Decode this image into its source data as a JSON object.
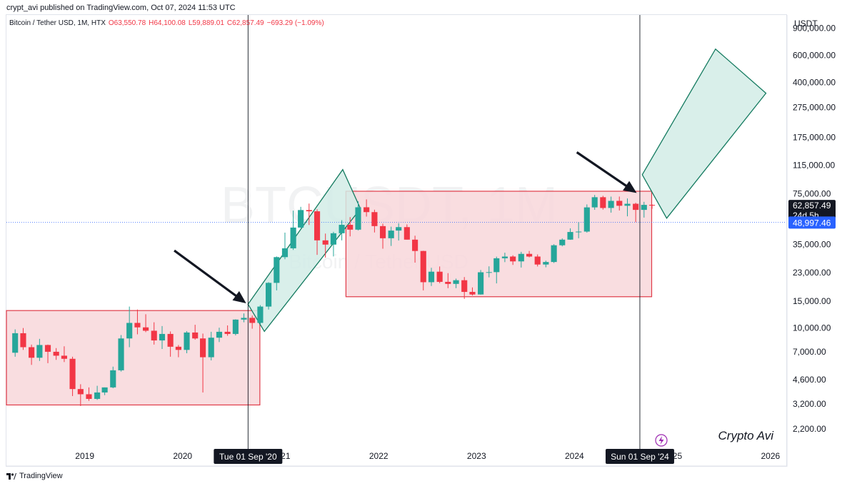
{
  "header": {
    "published": "crypt_avi published on TradingView.com, Oct 07, 2024 11:53 UTC"
  },
  "legend": {
    "symbol": "Bitcoin / Tether USD, 1M, HTX",
    "open": "O63,550.78",
    "high": "H64,100.08",
    "low": "L59,889.01",
    "close": "C62,857.49",
    "change": "−693.29 (−1.09%)"
  },
  "watermark": {
    "ticker": "BTCUSDT, 1M",
    "name": "Bitcoin / Tether USD"
  },
  "price_axis": {
    "unit": "USDT",
    "current_price": "62,857.49",
    "countdown": "24d 5h",
    "crosshair_price": "48,997.46"
  },
  "time_axis": {
    "highlight_left": "Tue 01 Sep '20",
    "highlight_right": "Sun 01 Sep '24"
  },
  "signature": "Crypto Avi",
  "footer": {
    "brand": "TradingView"
  },
  "colors": {
    "up": "#26a69a",
    "down": "#f23645",
    "range_box_fill": "#f8d7da",
    "range_box_stroke": "#e03a48",
    "channel_fill": "#d2ece6",
    "channel_stroke": "#137a5f",
    "current_price_bg": "#131722",
    "crosshair_bg": "#2962ff"
  },
  "chart_data": {
    "type": "candlestick",
    "title": "Bitcoin / Tether USD, 1M, HTX",
    "interval": "1M",
    "exchange": "HTX",
    "y_scale": "log",
    "ylim": [
      1700,
      1100000
    ],
    "y_ticks": [
      {
        "value": 900000,
        "label": "900,000.00"
      },
      {
        "value": 600000,
        "label": "600,000.00"
      },
      {
        "value": 400000,
        "label": "400,000.00"
      },
      {
        "value": 275000,
        "label": "275,000.00"
      },
      {
        "value": 175000,
        "label": "175,000.00"
      },
      {
        "value": 115000,
        "label": "115,000.00"
      },
      {
        "value": 75000,
        "label": "75,000.00"
      },
      {
        "value": 35000,
        "label": "35,000.00"
      },
      {
        "value": 23000,
        "label": "23,000.00"
      },
      {
        "value": 15000,
        "label": "15,000.00"
      },
      {
        "value": 10000,
        "label": "10,000.00"
      },
      {
        "value": 7000,
        "label": "7,000.00"
      },
      {
        "value": 4600,
        "label": "4,600.00"
      },
      {
        "value": 3200,
        "label": "3,200.00"
      },
      {
        "value": 2200,
        "label": "2,200.00"
      }
    ],
    "x_range": [
      "2018-03-15",
      "2026-03-01"
    ],
    "x_ticks": [
      {
        "date": "2019-01-01",
        "label": "2019"
      },
      {
        "date": "2020-01-01",
        "label": "2020"
      },
      {
        "date": "2021-01-01",
        "label": "2021"
      },
      {
        "date": "2022-01-01",
        "label": "2022"
      },
      {
        "date": "2023-01-01",
        "label": "2023"
      },
      {
        "date": "2024-01-01",
        "label": "2024"
      },
      {
        "date": "2025-01-01",
        "label": "2025"
      },
      {
        "date": "2026-01-01",
        "label": "2026"
      }
    ],
    "candles": [
      {
        "date": "2018-04-01",
        "o": 6900,
        "h": 9800,
        "l": 6500,
        "c": 9250
      },
      {
        "date": "2018-05-01",
        "o": 9250,
        "h": 10000,
        "l": 7200,
        "c": 7500
      },
      {
        "date": "2018-06-01",
        "o": 7500,
        "h": 7800,
        "l": 5750,
        "c": 6400
      },
      {
        "date": "2018-07-01",
        "o": 6400,
        "h": 8500,
        "l": 6100,
        "c": 7750
      },
      {
        "date": "2018-08-01",
        "o": 7750,
        "h": 7800,
        "l": 5900,
        "c": 7000
      },
      {
        "date": "2018-09-01",
        "o": 7000,
        "h": 7400,
        "l": 6200,
        "c": 6600
      },
      {
        "date": "2018-10-01",
        "o": 6600,
        "h": 7600,
        "l": 6000,
        "c": 6300
      },
      {
        "date": "2018-11-01",
        "o": 6300,
        "h": 6500,
        "l": 3600,
        "c": 4000
      },
      {
        "date": "2018-12-01",
        "o": 4000,
        "h": 4300,
        "l": 3100,
        "c": 3700
      },
      {
        "date": "2019-01-01",
        "o": 3700,
        "h": 4100,
        "l": 3350,
        "c": 3450
      },
      {
        "date": "2019-02-01",
        "o": 3450,
        "h": 4200,
        "l": 3400,
        "c": 3800
      },
      {
        "date": "2019-03-01",
        "o": 3800,
        "h": 4100,
        "l": 3650,
        "c": 4100
      },
      {
        "date": "2019-04-01",
        "o": 4100,
        "h": 5600,
        "l": 4050,
        "c": 5300
      },
      {
        "date": "2019-05-01",
        "o": 5300,
        "h": 9000,
        "l": 5200,
        "c": 8550
      },
      {
        "date": "2019-06-01",
        "o": 8550,
        "h": 13800,
        "l": 7500,
        "c": 10800
      },
      {
        "date": "2019-07-01",
        "o": 10800,
        "h": 13200,
        "l": 9100,
        "c": 10100
      },
      {
        "date": "2019-08-01",
        "o": 10100,
        "h": 12300,
        "l": 9400,
        "c": 9600
      },
      {
        "date": "2019-09-01",
        "o": 9600,
        "h": 10900,
        "l": 7800,
        "c": 8300
      },
      {
        "date": "2019-10-01",
        "o": 8300,
        "h": 10300,
        "l": 7300,
        "c": 9150
      },
      {
        "date": "2019-11-01",
        "o": 9150,
        "h": 9500,
        "l": 6500,
        "c": 7550
      },
      {
        "date": "2019-12-01",
        "o": 7550,
        "h": 7750,
        "l": 6450,
        "c": 7200
      },
      {
        "date": "2020-01-01",
        "o": 7200,
        "h": 9550,
        "l": 6850,
        "c": 9350
      },
      {
        "date": "2020-02-01",
        "o": 9350,
        "h": 10500,
        "l": 8400,
        "c": 8550
      },
      {
        "date": "2020-03-01",
        "o": 8550,
        "h": 9200,
        "l": 3800,
        "c": 6450
      },
      {
        "date": "2020-04-01",
        "o": 6450,
        "h": 9450,
        "l": 6150,
        "c": 8650
      },
      {
        "date": "2020-05-01",
        "o": 8650,
        "h": 10050,
        "l": 8100,
        "c": 9450
      },
      {
        "date": "2020-06-01",
        "o": 9450,
        "h": 10400,
        "l": 8900,
        "c": 9150
      },
      {
        "date": "2020-07-01",
        "o": 9150,
        "h": 11400,
        "l": 8950,
        "c": 11350
      },
      {
        "date": "2020-08-01",
        "o": 11350,
        "h": 12450,
        "l": 10900,
        "c": 11650
      },
      {
        "date": "2020-09-01",
        "o": 11650,
        "h": 12050,
        "l": 9900,
        "c": 10800
      },
      {
        "date": "2020-10-01",
        "o": 10800,
        "h": 14100,
        "l": 10550,
        "c": 13800
      },
      {
        "date": "2020-11-01",
        "o": 13800,
        "h": 19900,
        "l": 13200,
        "c": 19700
      },
      {
        "date": "2020-12-01",
        "o": 19700,
        "h": 29300,
        "l": 17600,
        "c": 29000
      },
      {
        "date": "2021-01-01",
        "o": 29000,
        "h": 41900,
        "l": 28100,
        "c": 33100
      },
      {
        "date": "2021-02-01",
        "o": 33100,
        "h": 58300,
        "l": 32300,
        "c": 45200
      },
      {
        "date": "2021-03-01",
        "o": 45200,
        "h": 61700,
        "l": 45000,
        "c": 58800
      },
      {
        "date": "2021-04-01",
        "o": 58800,
        "h": 64800,
        "l": 47000,
        "c": 57700
      },
      {
        "date": "2021-05-01",
        "o": 57700,
        "h": 59500,
        "l": 30000,
        "c": 37300
      },
      {
        "date": "2021-06-01",
        "o": 37300,
        "h": 41300,
        "l": 28800,
        "c": 35000
      },
      {
        "date": "2021-07-01",
        "o": 35000,
        "h": 42400,
        "l": 29300,
        "c": 41500
      },
      {
        "date": "2021-08-01",
        "o": 41500,
        "h": 50500,
        "l": 37300,
        "c": 47100
      },
      {
        "date": "2021-09-01",
        "o": 47100,
        "h": 52900,
        "l": 39600,
        "c": 43800
      },
      {
        "date": "2021-10-01",
        "o": 43800,
        "h": 67000,
        "l": 43300,
        "c": 61300
      },
      {
        "date": "2021-11-01",
        "o": 61300,
        "h": 69000,
        "l": 53300,
        "c": 57000
      },
      {
        "date": "2021-12-01",
        "o": 57000,
        "h": 59100,
        "l": 42000,
        "c": 46200
      },
      {
        "date": "2022-01-01",
        "o": 46200,
        "h": 47900,
        "l": 32900,
        "c": 38500
      },
      {
        "date": "2022-02-01",
        "o": 38500,
        "h": 45800,
        "l": 34300,
        "c": 43200
      },
      {
        "date": "2022-03-01",
        "o": 43200,
        "h": 48200,
        "l": 37200,
        "c": 45500
      },
      {
        "date": "2022-04-01",
        "o": 45500,
        "h": 47400,
        "l": 37700,
        "c": 37700
      },
      {
        "date": "2022-05-01",
        "o": 37700,
        "h": 40000,
        "l": 26700,
        "c": 31800
      },
      {
        "date": "2022-06-01",
        "o": 31800,
        "h": 31900,
        "l": 17600,
        "c": 19900
      },
      {
        "date": "2022-07-01",
        "o": 19900,
        "h": 24700,
        "l": 18800,
        "c": 23300
      },
      {
        "date": "2022-08-01",
        "o": 23300,
        "h": 25200,
        "l": 19600,
        "c": 20000
      },
      {
        "date": "2022-09-01",
        "o": 20000,
        "h": 22800,
        "l": 18200,
        "c": 19400
      },
      {
        "date": "2022-10-01",
        "o": 19400,
        "h": 21000,
        "l": 18200,
        "c": 20500
      },
      {
        "date": "2022-11-01",
        "o": 20500,
        "h": 21500,
        "l": 15500,
        "c": 17200
      },
      {
        "date": "2022-12-01",
        "o": 17200,
        "h": 18400,
        "l": 16300,
        "c": 16550
      },
      {
        "date": "2023-01-01",
        "o": 16550,
        "h": 23900,
        "l": 16500,
        "c": 23100
      },
      {
        "date": "2023-02-01",
        "o": 23100,
        "h": 25250,
        "l": 21400,
        "c": 23150
      },
      {
        "date": "2023-03-01",
        "o": 23150,
        "h": 29200,
        "l": 19550,
        "c": 28500
      },
      {
        "date": "2023-04-01",
        "o": 28500,
        "h": 31000,
        "l": 26900,
        "c": 29250
      },
      {
        "date": "2023-05-01",
        "o": 29250,
        "h": 29800,
        "l": 25800,
        "c": 27200
      },
      {
        "date": "2023-06-01",
        "o": 27200,
        "h": 31400,
        "l": 24800,
        "c": 30450
      },
      {
        "date": "2023-07-01",
        "o": 30450,
        "h": 31800,
        "l": 28900,
        "c": 29250
      },
      {
        "date": "2023-08-01",
        "o": 29250,
        "h": 30200,
        "l": 25200,
        "c": 25950
      },
      {
        "date": "2023-09-01",
        "o": 25950,
        "h": 27500,
        "l": 24900,
        "c": 26950
      },
      {
        "date": "2023-10-01",
        "o": 26950,
        "h": 35200,
        "l": 26550,
        "c": 34650
      },
      {
        "date": "2023-11-01",
        "o": 34650,
        "h": 38400,
        "l": 34100,
        "c": 37700
      },
      {
        "date": "2023-12-01",
        "o": 37700,
        "h": 44700,
        "l": 37600,
        "c": 42300
      },
      {
        "date": "2024-01-01",
        "o": 42300,
        "h": 48900,
        "l": 38500,
        "c": 42550
      },
      {
        "date": "2024-02-01",
        "o": 42550,
        "h": 64000,
        "l": 41900,
        "c": 61200
      },
      {
        "date": "2024-03-01",
        "o": 61200,
        "h": 73800,
        "l": 59000,
        "c": 71300
      },
      {
        "date": "2024-04-01",
        "o": 71300,
        "h": 72800,
        "l": 59200,
        "c": 60650
      },
      {
        "date": "2024-05-01",
        "o": 60650,
        "h": 71950,
        "l": 56550,
        "c": 67500
      },
      {
        "date": "2024-06-01",
        "o": 67500,
        "h": 72000,
        "l": 58400,
        "c": 62700
      },
      {
        "date": "2024-07-01",
        "o": 62700,
        "h": 70000,
        "l": 53500,
        "c": 64600
      },
      {
        "date": "2024-08-01",
        "o": 64600,
        "h": 65600,
        "l": 49000,
        "c": 58950
      },
      {
        "date": "2024-09-01",
        "o": 58950,
        "h": 66500,
        "l": 52500,
        "c": 63550
      },
      {
        "date": "2024-10-01",
        "o": 63550,
        "h": 64100,
        "l": 59889.01,
        "c": 62857.49
      }
    ],
    "annotations": {
      "range_boxes": [
        {
          "start": "2018-03-15",
          "end": "2020-10-15",
          "top": 13000,
          "bottom": 3150
        },
        {
          "start": "2021-09-01",
          "end": "2024-10-15",
          "top": 78000,
          "bottom": 16000
        }
      ],
      "channels": [
        {
          "p1": {
            "date": "2020-09-01",
            "v": 14300
          },
          "p2": {
            "date": "2021-08-20",
            "v": 108000
          },
          "p3": {
            "date": "2021-10-25",
            "v": 60000
          },
          "p4": {
            "date": "2020-11-01",
            "v": 9500
          }
        },
        {
          "p1": {
            "date": "2024-09-10",
            "v": 100000
          },
          "p2": {
            "date": "2025-06-10",
            "v": 660000
          },
          "p3": {
            "date": "2025-12-15",
            "v": 340000
          },
          "p4": {
            "date": "2024-12-10",
            "v": 52000
          }
        }
      ],
      "vertical_lines": [
        "2020-09-01",
        "2024-09-01"
      ],
      "arrows": [
        {
          "from": {
            "date": "2019-12-01",
            "v": 32000
          },
          "to": {
            "date": "2020-08-25",
            "v": 14500
          }
        },
        {
          "from": {
            "date": "2024-01-10",
            "v": 140000
          },
          "to": {
            "date": "2024-08-20",
            "v": 76000
          }
        }
      ],
      "crosshair_value": 48997.46
    }
  }
}
